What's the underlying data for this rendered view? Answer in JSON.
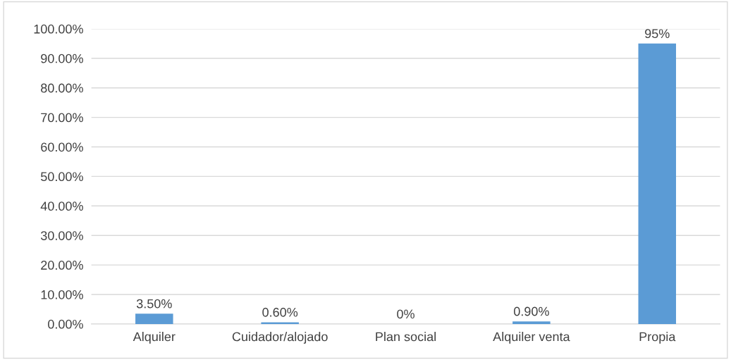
{
  "chart_data": {
    "type": "bar",
    "categories": [
      "Alquiler",
      "Cuidador/alojado",
      "Plan social",
      "Alquiler venta",
      "Propia"
    ],
    "values": [
      3.5,
      0.6,
      0,
      0.9,
      95
    ],
    "value_labels": [
      "3.50%",
      "0.60%",
      "0%",
      "0.90%",
      "95%"
    ],
    "color": "#5b9bd5",
    "ylim": [
      0,
      100
    ],
    "yticks": [
      {
        "value": 0,
        "label": "0.00%"
      },
      {
        "value": 10,
        "label": "10.00%"
      },
      {
        "value": 20,
        "label": "20.00%"
      },
      {
        "value": 30,
        "label": "30.00%"
      },
      {
        "value": 40,
        "label": "40.00%"
      },
      {
        "value": 50,
        "label": "50.00%"
      },
      {
        "value": 60,
        "label": "60.00%"
      },
      {
        "value": 70,
        "label": "70.00%"
      },
      {
        "value": 80,
        "label": "80.00%"
      },
      {
        "value": 90,
        "label": "90.00%"
      },
      {
        "value": 100,
        "label": "100.00%"
      }
    ],
    "grid": "y"
  }
}
